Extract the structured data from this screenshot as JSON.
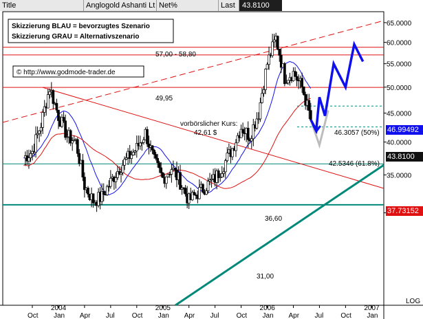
{
  "header": {
    "title_label": "Title",
    "title_value": "Anglogold Ashanti Lt",
    "unit_label": "Net%",
    "last_label": "Last",
    "last_value": "43.8100"
  },
  "annotations": {
    "scenario_blue": "Skizzierung BLAU = bevorzugtes Szenario",
    "scenario_grey": "Skizzierung GRAU = Alternativszenario",
    "copyright": "© http://www.godmode-trader.de",
    "zone_label": "57,00 - 58,80",
    "level_4995": "49,95",
    "premarket_title": "vorbörslicher Kurs:",
    "premarket_value": "42,61 $",
    "fib50": "46.3057 (50%)",
    "fib618": "42.5346 (61.8%)",
    "level_3660": "36,60",
    "level_3100": "31,00"
  },
  "price_boxes": {
    "ma_blue": "46.99492",
    "last": "43.8100",
    "ma_red": "37.73152"
  },
  "colors": {
    "blue": "#1010ee",
    "red": "#e01010",
    "teal": "#008878",
    "grey": "#bcbcbc",
    "dark": "#222222"
  },
  "chart_data": {
    "type": "candlestick",
    "log_scale": true,
    "y_axis_label": "LOG",
    "ylim": [
      30,
      65
    ],
    "y_ticks": [
      30,
      35,
      40,
      45,
      50,
      55,
      60,
      65
    ],
    "y_tick_labels": [
      "30.0000",
      "35.0000",
      "40.0000",
      "45.0000",
      "50.0000",
      "55.0000",
      "60.0000",
      "65.0000"
    ],
    "x_month_labels": [
      "Oct",
      "Jan",
      "Apr",
      "Jul",
      "Oct",
      "Jan",
      "Apr",
      "Jul",
      "Oct",
      "Jan",
      "Apr",
      "Jul",
      "Oct",
      "Jan"
    ],
    "x_year_labels": [
      "2004",
      "2005",
      "2006",
      "2007"
    ],
    "horizontal_levels": [
      57.0,
      58.8,
      49.95,
      36.6,
      31.0
    ],
    "fib_levels": [
      46.3057,
      42.5346
    ],
    "last_close": 43.81,
    "moving_averages": [
      {
        "color": "blue",
        "last": 46.99492
      },
      {
        "color": "red",
        "last": 37.73152
      }
    ],
    "price_path": [
      [
        "2003-09",
        37.5
      ],
      [
        "2003-10",
        38.5
      ],
      [
        "2003-11",
        43.0
      ],
      [
        "2003-12",
        49.9
      ],
      [
        "2004-01",
        44.5
      ],
      [
        "2004-02",
        41.0
      ],
      [
        "2004-03",
        40.0
      ],
      [
        "2004-04",
        33.5
      ],
      [
        "2004-05",
        31.5
      ],
      [
        "2004-06",
        32.0
      ],
      [
        "2004-07",
        34.0
      ],
      [
        "2004-08",
        36.0
      ],
      [
        "2004-09",
        37.5
      ],
      [
        "2004-10",
        39.0
      ],
      [
        "2004-11",
        41.5
      ],
      [
        "2004-12",
        37.0
      ],
      [
        "2005-01",
        34.5
      ],
      [
        "2005-02",
        36.0
      ],
      [
        "2005-03",
        34.0
      ],
      [
        "2005-04",
        31.5
      ],
      [
        "2005-05",
        32.5
      ],
      [
        "2005-06",
        33.5
      ],
      [
        "2005-07",
        34.5
      ],
      [
        "2005-08",
        36.5
      ],
      [
        "2005-09",
        39.0
      ],
      [
        "2005-10",
        42.5
      ],
      [
        "2005-11",
        41.0
      ],
      [
        "2005-12",
        45.0
      ],
      [
        "2006-01",
        55.0
      ],
      [
        "2006-02",
        61.0
      ],
      [
        "2006-03",
        52.0
      ],
      [
        "2006-04",
        53.0
      ],
      [
        "2006-05",
        50.0
      ],
      [
        "2006-06",
        43.8
      ]
    ],
    "scenario_blue_path": [
      [
        "2006-06",
        43.8
      ],
      [
        "2006-06-20",
        42.0
      ],
      [
        "2006-07",
        48.0
      ],
      [
        "2006-07-20",
        44.5
      ],
      [
        "2006-08-20",
        55.0
      ],
      [
        "2006-10",
        50.0
      ],
      [
        "2006-11",
        59.5
      ],
      [
        "2006-12",
        55.5
      ]
    ],
    "scenario_grey_path": [
      [
        "2006-06",
        43.8
      ],
      [
        "2006-07",
        39.5
      ],
      [
        "2006-08",
        45.5
      ]
    ]
  }
}
